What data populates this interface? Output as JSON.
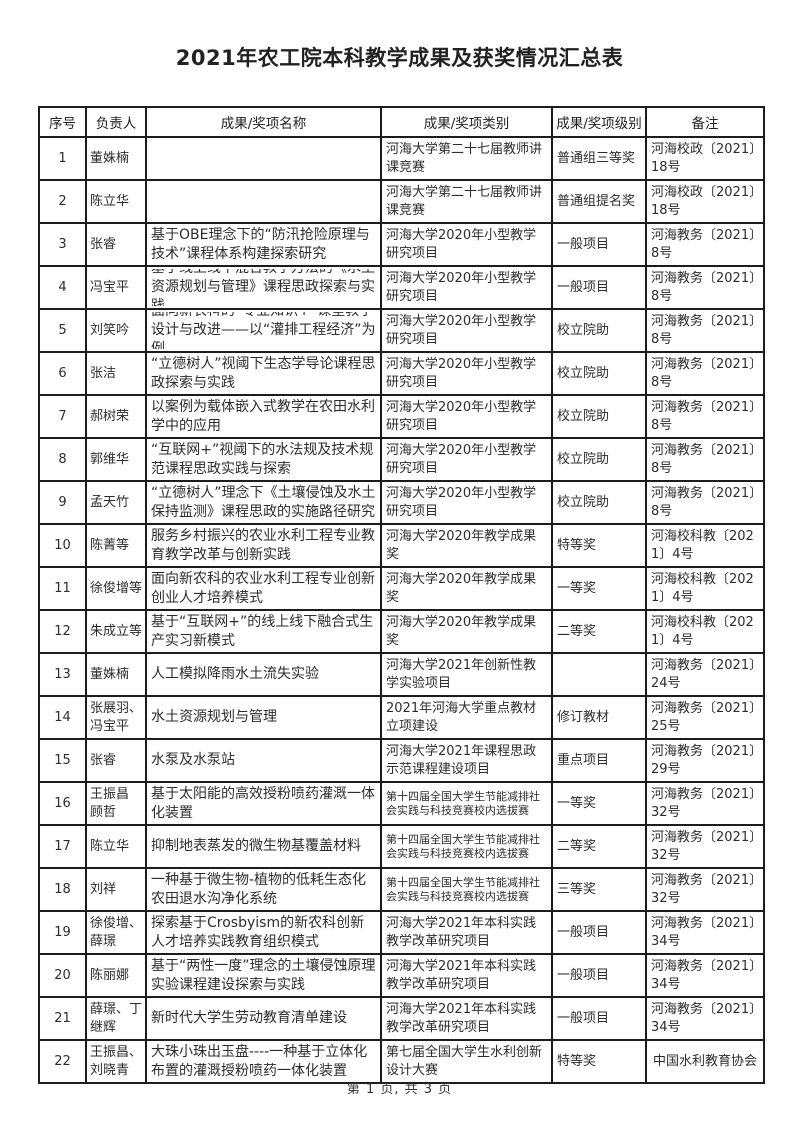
{
  "page": {
    "title": "2021年农工院本科教学成果及获奖情况汇总表",
    "footer": "第 1 页, 共 3 页"
  },
  "table": {
    "headers": [
      "序号",
      "负责人",
      "成果/奖项名称",
      "成果/奖项类别",
      "成果/奖项级别",
      "备注"
    ],
    "rows": [
      {
        "no": "1",
        "person": "董姝楠",
        "name": "",
        "category": "河海大学第二十七届教师讲课竞赛",
        "level": "普通组三等奖",
        "remark": "河海校政〔2021〕18号"
      },
      {
        "no": "2",
        "person": "陈立华",
        "name": "",
        "category": "河海大学第二十七届教师讲课竞赛",
        "level": "普通组提名奖",
        "remark": "河海校政〔2021〕18号"
      },
      {
        "no": "3",
        "person": "张睿",
        "name": "基于OBE理念下的“防汛抢险原理与技术”课程体系构建探索研究",
        "category": "河海大学2020年小型教学研究项目",
        "level": "一般项目",
        "remark": "河海教务〔2021〕8号"
      },
      {
        "no": "4",
        "person": "冯宝平",
        "name": "基于线上线下混合教学方法的《水土资源规划与管理》课程思政探索与实践",
        "category": "河海大学2020年小型教学研究项目",
        "level": "一般项目",
        "remark": "河海教务〔2021〕8号"
      },
      {
        "no": "5",
        "person": "刘笑吟",
        "name": "面向新农科的“专业知识+”课堂教学设计与改进——以“灌排工程经济”为例",
        "category": "河海大学2020年小型教学研究项目",
        "level": "校立院助",
        "remark": "河海教务〔2021〕8号"
      },
      {
        "no": "6",
        "person": "张洁",
        "name": "“立德树人”视阈下生态学导论课程思政探索与实践",
        "category": "河海大学2020年小型教学研究项目",
        "level": "校立院助",
        "remark": "河海教务〔2021〕8号"
      },
      {
        "no": "7",
        "person": "郝树荣",
        "name": "以案例为载体嵌入式教学在农田水利学中的应用",
        "category": "河海大学2020年小型教学研究项目",
        "level": "校立院助",
        "remark": "河海教务〔2021〕8号"
      },
      {
        "no": "8",
        "person": "郭维华",
        "name": "“互联网+”视阈下的水法规及技术规范课程思政实践与探索",
        "category": "河海大学2020年小型教学研究项目",
        "level": "校立院助",
        "remark": "河海教务〔2021〕8号"
      },
      {
        "no": "9",
        "person": "孟天竹",
        "name": "“立德树人”理念下《土壤侵蚀及水土保持监测》课程思政的实施路径研究",
        "category": "河海大学2020年小型教学研究项目",
        "level": "校立院助",
        "remark": "河海教务〔2021〕8号"
      },
      {
        "no": "10",
        "person": "陈菁等",
        "name": "服务乡村振兴的农业水利工程专业教育教学改革与创新实践",
        "category": "河海大学2020年教学成果奖",
        "level": "特等奖",
        "remark": "河海校科教〔2021〕4号"
      },
      {
        "no": "11",
        "person": "徐俊增等",
        "name": "面向新农科的农业水利工程专业创新创业人才培养模式",
        "category": "河海大学2020年教学成果奖",
        "level": "一等奖",
        "remark": "河海校科教〔2021〕4号"
      },
      {
        "no": "12",
        "person": "朱成立等",
        "name": "基于“互联网+”的线上线下融合式生产实习新模式",
        "category": "河海大学2020年教学成果奖",
        "level": "二等奖",
        "remark": "河海校科教〔2021〕4号"
      },
      {
        "no": "13",
        "person": "董姝楠",
        "name": "人工模拟降雨水土流失实验",
        "category": "河海大学2021年创新性教学实验项目",
        "level": "",
        "remark": "河海教务〔2021〕24号"
      },
      {
        "no": "14",
        "person": "张展羽、冯宝平",
        "name": "水土资源规划与管理",
        "category": "2021年河海大学重点教材立项建设",
        "level": "修订教材",
        "remark": "河海教务〔2021〕25号"
      },
      {
        "no": "15",
        "person": "张睿",
        "name": "水泵及水泵站",
        "category": "河海大学2021年课程思政示范课程建设项目",
        "level": "重点项目",
        "remark": "河海教务〔2021〕29号"
      },
      {
        "no": "16",
        "person": "王振昌 顾哲",
        "name": "基于太阳能的高效授粉喷药灌溉一体化装置",
        "category": "第十四届全国大学生节能减排社会实践与科技竞赛校内选拔赛",
        "level": "一等奖",
        "remark": "河海教务〔2021〕32号"
      },
      {
        "no": "17",
        "person": "陈立华",
        "name": "抑制地表蒸发的微生物基覆盖材料",
        "category": "第十四届全国大学生节能减排社会实践与科技竞赛校内选拔赛",
        "level": "二等奖",
        "remark": "河海教务〔2021〕32号"
      },
      {
        "no": "18",
        "person": "刘祥",
        "name": "一种基于微生物-植物的低耗生态化农田退水沟净化系统",
        "category": "第十四届全国大学生节能减排社会实践与科技竞赛校内选拔赛",
        "level": "三等奖",
        "remark": "河海教务〔2021〕32号"
      },
      {
        "no": "19",
        "person": "徐俊增、薛璟",
        "name": "探索基于Crosbyism的新农科创新人才培养实践教育组织模式",
        "category": "河海大学2021年本科实践教学改革研究项目",
        "level": "一般项目",
        "remark": "河海教务〔2021〕34号"
      },
      {
        "no": "20",
        "person": "陈丽娜",
        "name": "基于“两性一度”理念的土壤侵蚀原理实验课程建设探索与实践",
        "category": "河海大学2021年本科实践教学改革研究项目",
        "level": "一般项目",
        "remark": "河海教务〔2021〕34号"
      },
      {
        "no": "21",
        "person": "薛璟、丁继辉",
        "name": "新时代大学生劳动教育清单建设",
        "category": "河海大学2021年本科实践教学改革研究项目",
        "level": "一般项目",
        "remark": "河海教务〔2021〕34号"
      },
      {
        "no": "22",
        "person": "王振昌、刘晓青",
        "name": "大珠小珠出玉盘----一种基于立体化布置的灌溉授粉喷药一体化装置",
        "category": "第七届全国大学生水利创新设计大赛",
        "level": "特等奖",
        "remark": "中国水利教育协会"
      }
    ]
  }
}
